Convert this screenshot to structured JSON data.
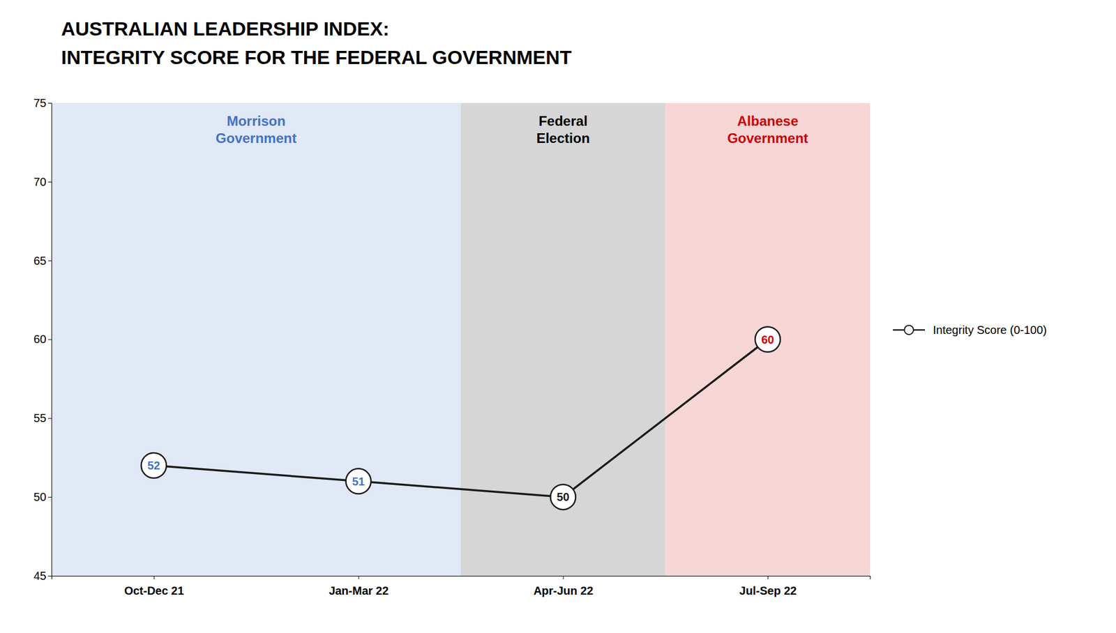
{
  "chart_data": {
    "type": "line",
    "title": "AUSTRALIAN LEADERSHIP INDEX:",
    "subtitle": "INTEGRITY SCORE FOR THE FEDERAL GOVERNMENT",
    "categories": [
      "Oct-Dec 21",
      "Jan-Mar 22",
      "Apr-Jun 22",
      "Jul-Sep 22"
    ],
    "series": [
      {
        "name": "Integrity Score (0-100)",
        "color": "#1a1a1a",
        "colors": [
          "#4472c4",
          "#4472c4",
          "#1a1a1a",
          "#cc0000"
        ],
        "marker": "circle",
        "values": [
          52,
          51,
          50,
          60
        ]
      }
    ],
    "ylim": [
      45,
      75
    ],
    "yticks": [
      45,
      50,
      55,
      60,
      65,
      70,
      75
    ],
    "grid": false,
    "legend": "right",
    "data_labels": true,
    "annotations": [
      {
        "text": [
          "Morrison",
          "Government"
        ],
        "span": [
          "Oct-Dec 21",
          "Jan-Mar 22"
        ],
        "color": "#4472c4"
      },
      {
        "text": [
          "Federal",
          "Election"
        ],
        "span": [
          "Apr-Jun 22",
          "Apr-Jun 22"
        ],
        "color": "#000000"
      },
      {
        "text": [
          "Albanese",
          "Government"
        ],
        "span": [
          "Jul-Sep 22",
          "Jul-Sep 22"
        ],
        "color": "#cc0000"
      }
    ]
  }
}
